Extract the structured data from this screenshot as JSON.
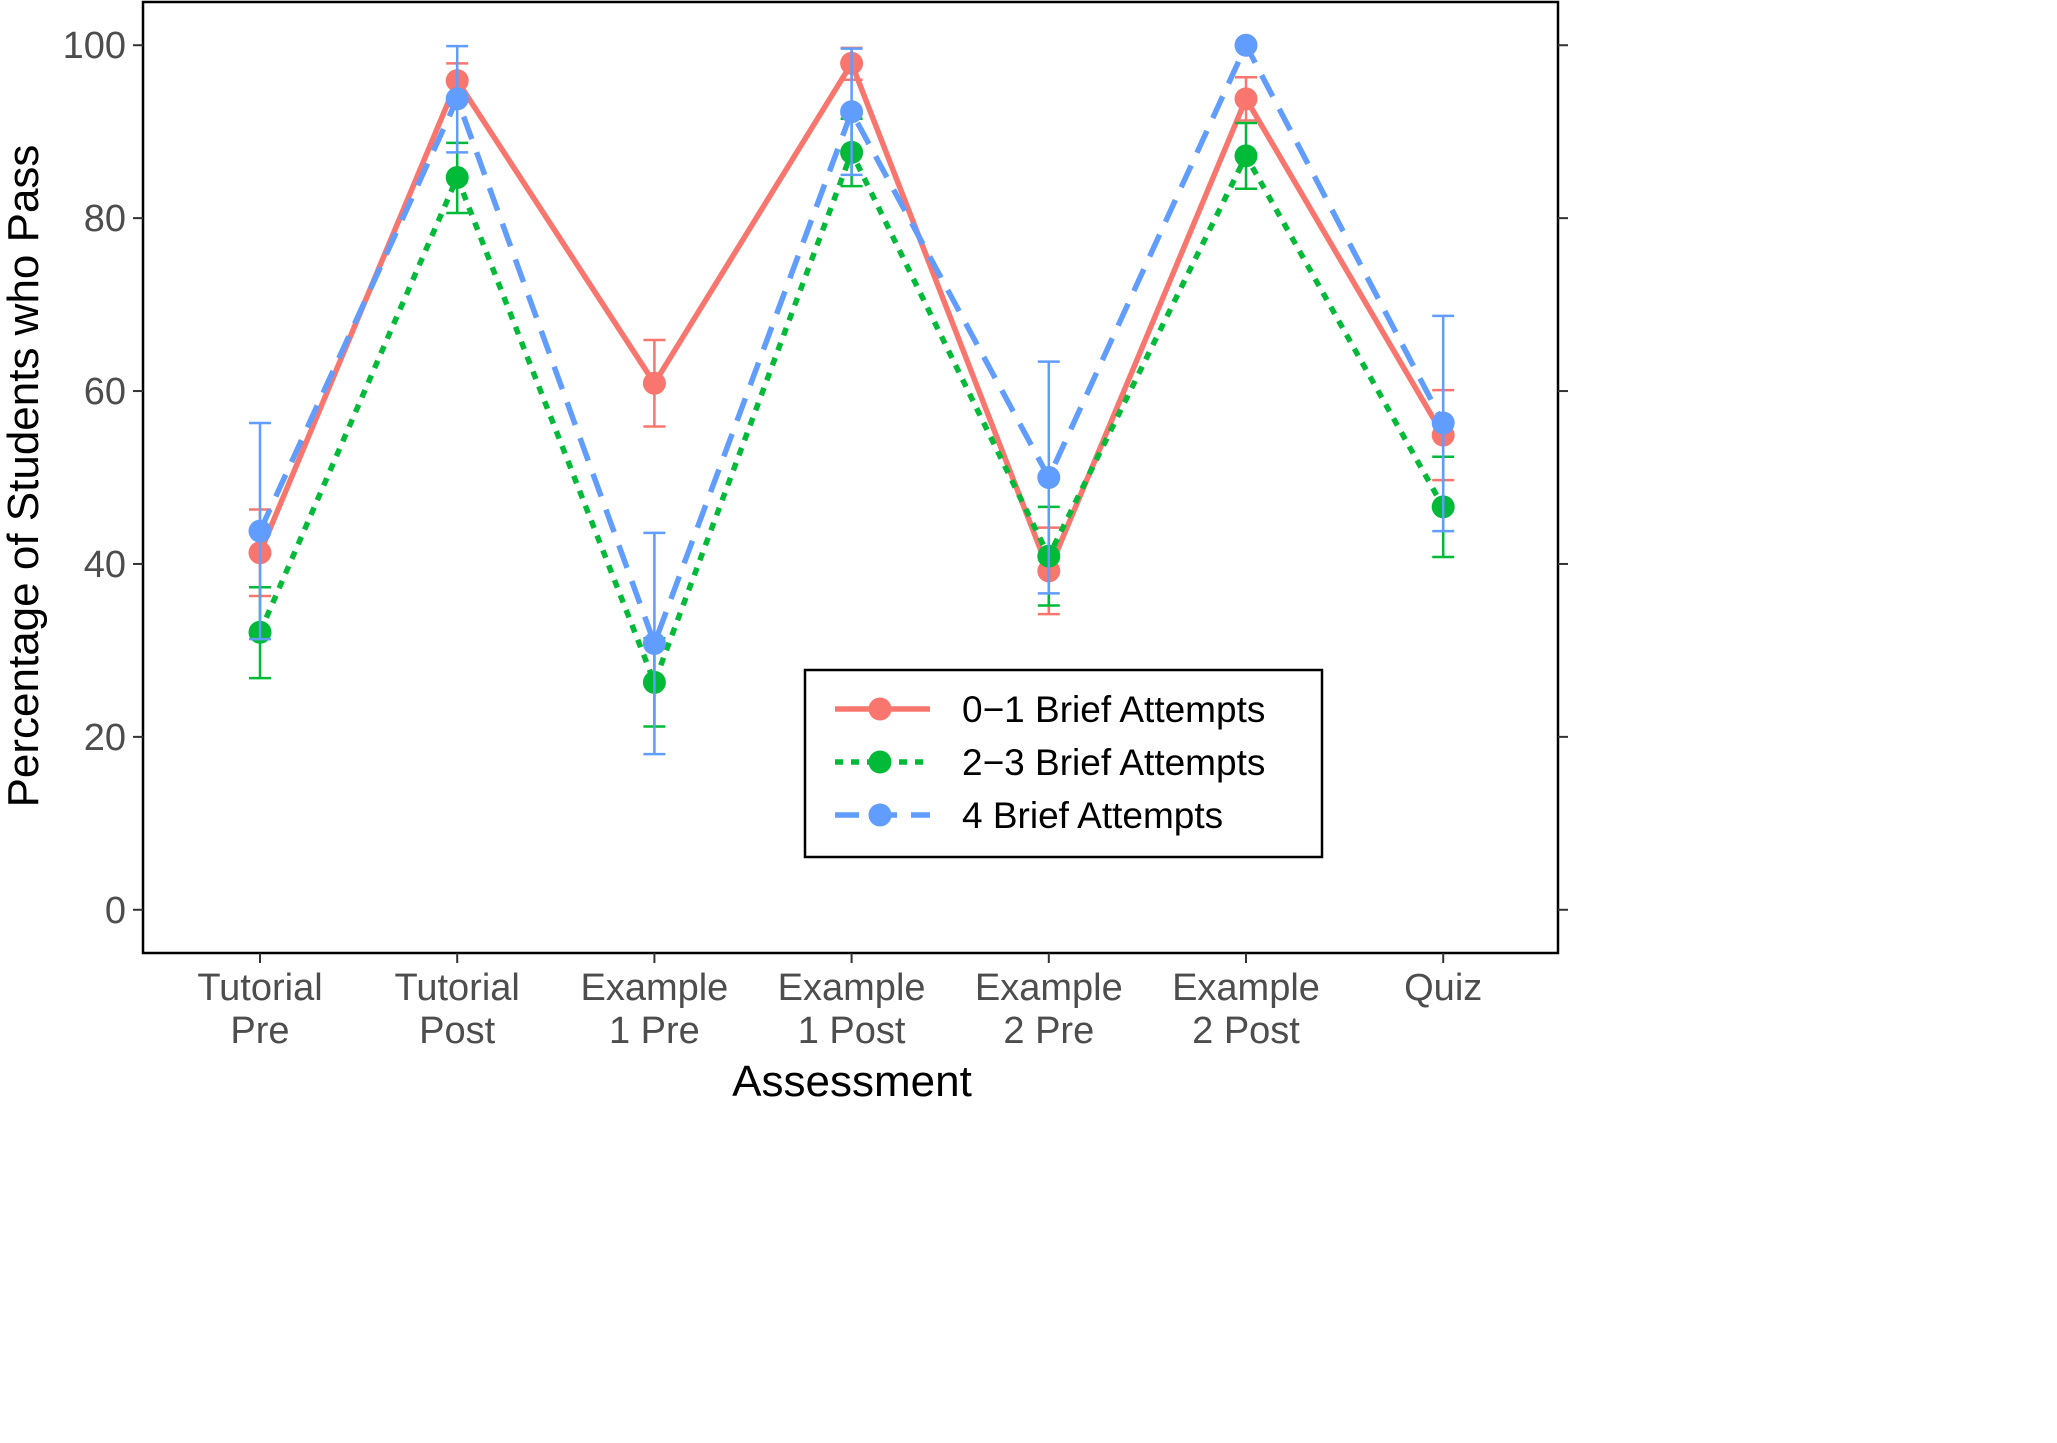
{
  "chart_data": {
    "type": "line",
    "title": "",
    "xlabel": "Assessment",
    "ylabel": "Percentage of Students who Pass",
    "ylim": [
      -5,
      105
    ],
    "yticks": [
      0,
      20,
      40,
      60,
      80,
      100
    ],
    "categories": [
      [
        "Tutorial",
        "Pre"
      ],
      [
        "Tutorial",
        "Post"
      ],
      [
        "Example",
        "1 Pre"
      ],
      [
        "Example",
        "1 Post"
      ],
      [
        "Example",
        "2 Pre"
      ],
      [
        "Example",
        "2 Post"
      ],
      [
        "Quiz"
      ]
    ],
    "grid": false,
    "legend_position": "lower-right inside",
    "error_bars": true,
    "series": [
      {
        "name": "0−1 Brief Attempts",
        "color": "#F8766D",
        "line_style": "solid",
        "values": [
          41.3,
          95.9,
          60.9,
          97.9,
          39.2,
          93.8,
          54.9
        ],
        "error_low": [
          36.3,
          93.8,
          55.9,
          96.0,
          34.2,
          91.3,
          49.7
        ],
        "error_high": [
          46.3,
          97.9,
          65.9,
          99.7,
          44.2,
          96.3,
          60.1
        ]
      },
      {
        "name": "2−3 Brief Attempts",
        "color": "#00BA38",
        "line_style": "dotted",
        "values": [
          32.1,
          84.7,
          26.3,
          87.6,
          40.9,
          87.2,
          46.6
        ],
        "error_low": [
          26.8,
          80.6,
          21.2,
          83.7,
          35.2,
          83.4,
          40.8
        ],
        "error_high": [
          37.3,
          88.7,
          31.4,
          91.5,
          46.6,
          91.0,
          52.4
        ]
      },
      {
        "name": "4 Brief Attempts",
        "color": "#619CFF",
        "line_style": "dashed",
        "values": [
          43.8,
          93.8,
          30.8,
          92.3,
          50.0,
          100.0,
          56.3
        ],
        "error_low": [
          31.3,
          87.6,
          18.0,
          85.0,
          36.6,
          100.0,
          43.8
        ],
        "error_high": [
          56.3,
          99.9,
          43.6,
          99.6,
          63.4,
          100.0,
          68.7
        ]
      }
    ]
  }
}
